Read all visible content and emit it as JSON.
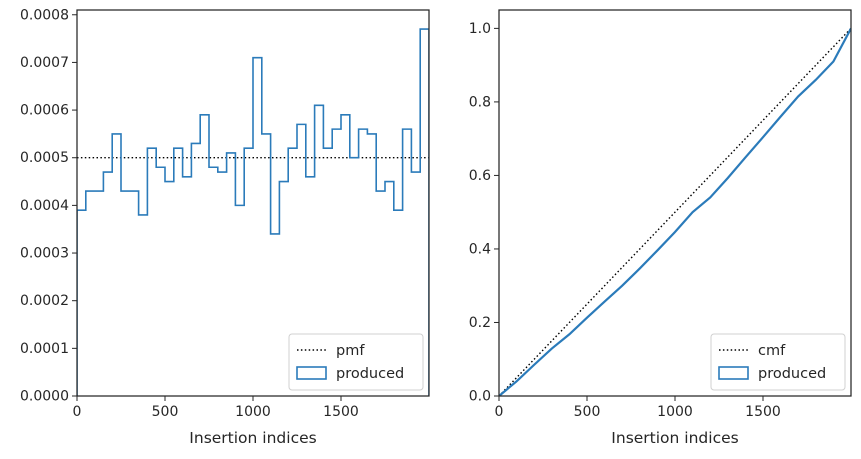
{
  "chart_data": [
    {
      "type": "step",
      "xlabel": "Insertion indices",
      "ylabel": "",
      "xlim": [
        0,
        2000
      ],
      "ylim": [
        0,
        0.00081
      ],
      "xticks": [
        0,
        500,
        1000,
        1500
      ],
      "xtick_labels": [
        "0",
        "500",
        "1000",
        "1500"
      ],
      "yticks": [
        0,
        0.0001,
        0.0002,
        0.0003,
        0.0004,
        0.0005,
        0.0006,
        0.0007,
        0.0008
      ],
      "ytick_labels": [
        "0.0000",
        "0.0001",
        "0.0002",
        "0.0003",
        "0.0004",
        "0.0005",
        "0.0006",
        "0.0007",
        "0.0008"
      ],
      "grid": false,
      "legend_position": "lower-right",
      "series": [
        {
          "name": "pmf",
          "style": "dotted",
          "color": "#000000",
          "x": [
            0,
            2000
          ],
          "y": [
            0.0005,
            0.0005
          ]
        },
        {
          "name": "produced",
          "style": "step",
          "color": "#2b7bba",
          "bin_width": 50,
          "bin_starts": [
            0,
            50,
            100,
            150,
            200,
            250,
            300,
            350,
            400,
            450,
            500,
            550,
            600,
            650,
            700,
            750,
            800,
            850,
            900,
            950,
            1000,
            1050,
            1100,
            1150,
            1200,
            1250,
            1300,
            1350,
            1400,
            1450,
            1500,
            1550,
            1600,
            1650,
            1700,
            1750,
            1800,
            1850,
            1900,
            1950
          ],
          "values": [
            0.00039,
            0.00043,
            0.00043,
            0.00047,
            0.00055,
            0.00043,
            0.00043,
            0.00038,
            0.00052,
            0.00048,
            0.00045,
            0.00052,
            0.00046,
            0.00053,
            0.00059,
            0.00048,
            0.00047,
            0.00051,
            0.0004,
            0.00052,
            0.00071,
            0.00055,
            0.00034,
            0.00045,
            0.00052,
            0.00057,
            0.00046,
            0.00061,
            0.00052,
            0.00056,
            0.00059,
            0.0005,
            0.00056,
            0.00055,
            0.00043,
            0.00045,
            0.00039,
            0.00056,
            0.00047,
            0.00077
          ]
        }
      ]
    },
    {
      "type": "line",
      "xlabel": "Insertion indices",
      "ylabel": "",
      "xlim": [
        0,
        2000
      ],
      "ylim": [
        0,
        1.05
      ],
      "xticks": [
        0,
        500,
        1000,
        1500
      ],
      "xtick_labels": [
        "0",
        "500",
        "1000",
        "1500"
      ],
      "yticks": [
        0,
        0.2,
        0.4,
        0.6,
        0.8,
        1.0
      ],
      "ytick_labels": [
        "0.0",
        "0.2",
        "0.4",
        "0.6",
        "0.8",
        "1.0"
      ],
      "grid": false,
      "legend_position": "lower-right",
      "series": [
        {
          "name": "cmf",
          "style": "dotted",
          "color": "#000000",
          "x": [
            0,
            2000
          ],
          "y": [
            0,
            1.0
          ]
        },
        {
          "name": "produced",
          "style": "solid",
          "color": "#2b7bba",
          "x": [
            0,
            100,
            200,
            300,
            400,
            500,
            600,
            700,
            800,
            900,
            1000,
            1100,
            1200,
            1300,
            1400,
            1500,
            1600,
            1700,
            1800,
            1900,
            2000
          ],
          "y": [
            0.0,
            0.04,
            0.085,
            0.129,
            0.168,
            0.213,
            0.257,
            0.3,
            0.347,
            0.396,
            0.446,
            0.5,
            0.54,
            0.593,
            0.649,
            0.704,
            0.76,
            0.815,
            0.86,
            0.91,
            1.0
          ]
        }
      ]
    }
  ]
}
